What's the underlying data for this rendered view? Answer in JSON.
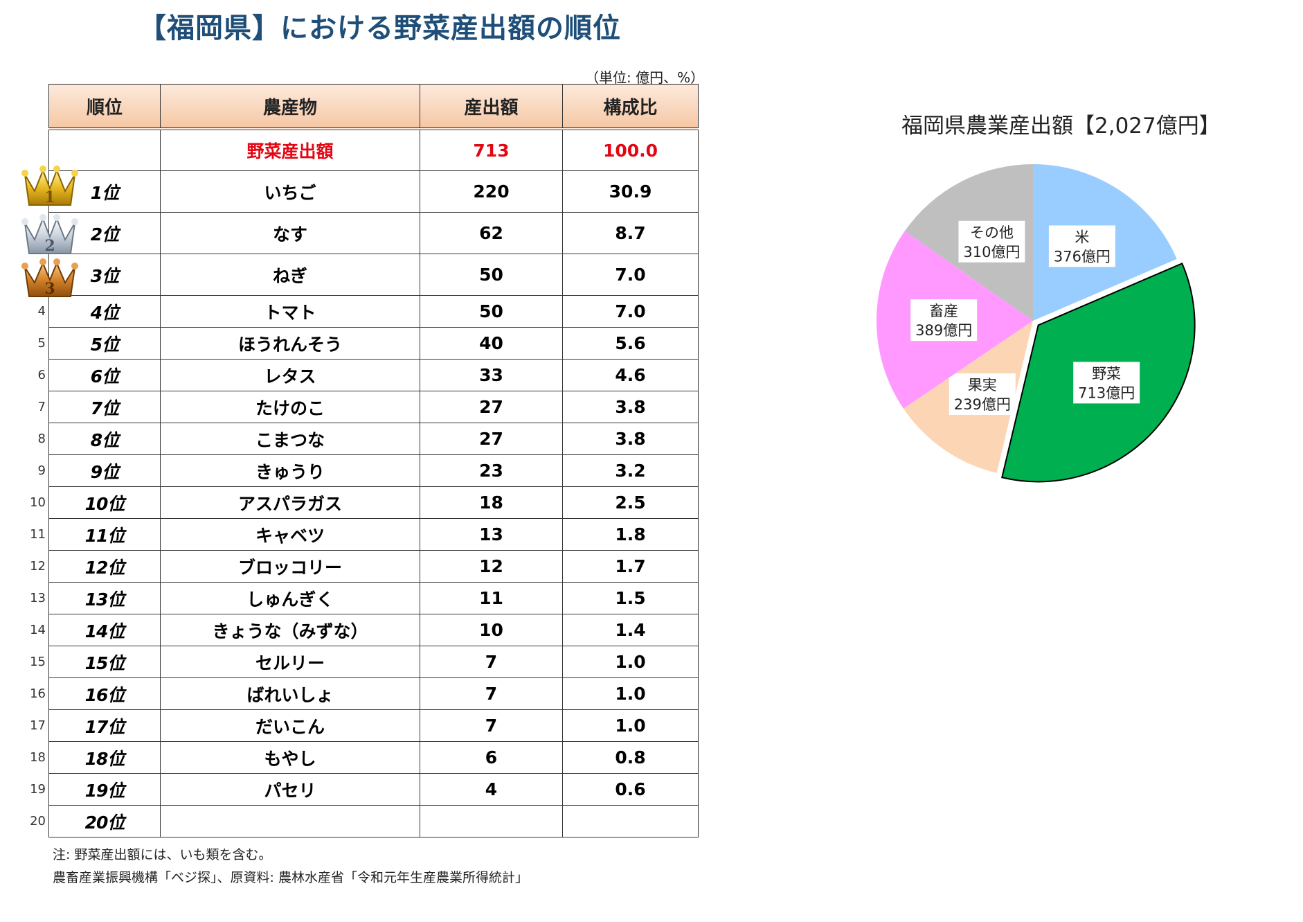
{
  "title": "【福岡県】における野菜産出額の順位",
  "unit_note": "（単位: 億円、%）",
  "table": {
    "headers": [
      "順位",
      "農産物",
      "産出額",
      "構成比"
    ],
    "total": {
      "label": "野菜産出額",
      "value": "713",
      "ratio": "100.0"
    },
    "rows": [
      {
        "rank": "1位",
        "crop": "いちご",
        "value": "220",
        "ratio": "30.9"
      },
      {
        "rank": "2位",
        "crop": "なす",
        "value": "62",
        "ratio": "8.7"
      },
      {
        "rank": "3位",
        "crop": "ねぎ",
        "value": "50",
        "ratio": "7.0"
      },
      {
        "rank": "4位",
        "crop": "トマト",
        "value": "50",
        "ratio": "7.0"
      },
      {
        "rank": "5位",
        "crop": "ほうれんそう",
        "value": "40",
        "ratio": "5.6"
      },
      {
        "rank": "6位",
        "crop": "レタス",
        "value": "33",
        "ratio": "4.6"
      },
      {
        "rank": "7位",
        "crop": "たけのこ",
        "value": "27",
        "ratio": "3.8"
      },
      {
        "rank": "8位",
        "crop": "こまつな",
        "value": "27",
        "ratio": "3.8"
      },
      {
        "rank": "9位",
        "crop": "きゅうり",
        "value": "23",
        "ratio": "3.2"
      },
      {
        "rank": "10位",
        "crop": "アスパラガス",
        "value": "18",
        "ratio": "2.5"
      },
      {
        "rank": "11位",
        "crop": "キャベツ",
        "value": "13",
        "ratio": "1.8"
      },
      {
        "rank": "12位",
        "crop": "ブロッコリー",
        "value": "12",
        "ratio": "1.7"
      },
      {
        "rank": "13位",
        "crop": "しゅんぎく",
        "value": "11",
        "ratio": "1.5"
      },
      {
        "rank": "14位",
        "crop": "きょうな（みずな）",
        "value": "10",
        "ratio": "1.4"
      },
      {
        "rank": "15位",
        "crop": "セルリー",
        "value": "7",
        "ratio": "1.0"
      },
      {
        "rank": "16位",
        "crop": "ばれいしょ",
        "value": "7",
        "ratio": "1.0"
      },
      {
        "rank": "17位",
        "crop": "だいこん",
        "value": "7",
        "ratio": "1.0"
      },
      {
        "rank": "18位",
        "crop": "もやし",
        "value": "6",
        "ratio": "0.8"
      },
      {
        "rank": "19位",
        "crop": "パセリ",
        "value": "4",
        "ratio": "0.6"
      },
      {
        "rank": "20位",
        "crop": "",
        "value": "",
        "ratio": ""
      }
    ],
    "row_numbers": [
      "4",
      "5",
      "6",
      "7",
      "8",
      "9",
      "10",
      "11",
      "12",
      "13",
      "14",
      "15",
      "16",
      "17",
      "18",
      "19",
      "20"
    ],
    "crown_numbers": [
      "1",
      "2",
      "3"
    ]
  },
  "notes": [
    "注: 野菜産出額には、いも類を含む。",
    "農畜産業振興機構「ベジ探」、原資料: 農林水産省「令和元年生産農業所得統計」"
  ],
  "chart_data": {
    "type": "pie",
    "title": "福岡県農業産出額【2,027億円】",
    "start": "12 o'clock",
    "direction": "clockwise",
    "slices": [
      {
        "name": "米",
        "label": "376億円",
        "value": 376,
        "color": "#99ccff",
        "exploded": false
      },
      {
        "name": "野菜",
        "label": "713億円",
        "value": 713,
        "color": "#00b050",
        "exploded": true
      },
      {
        "name": "果実",
        "label": "239億円",
        "value": 239,
        "color": "#fcd5b4",
        "exploded": false
      },
      {
        "name": "畜産",
        "label": "389億円",
        "value": 389,
        "color": "#ff99ff",
        "exploded": false
      },
      {
        "name": "その他",
        "label": "310億円",
        "value": 310,
        "color": "#bfbfbf",
        "exploded": false
      }
    ]
  },
  "colors": {
    "title": "#1f4e79",
    "total_row": "#e30613",
    "header_bg": "#f8d3b8"
  },
  "icons": [
    "gold-crown-icon",
    "silver-crown-icon",
    "bronze-crown-icon"
  ]
}
